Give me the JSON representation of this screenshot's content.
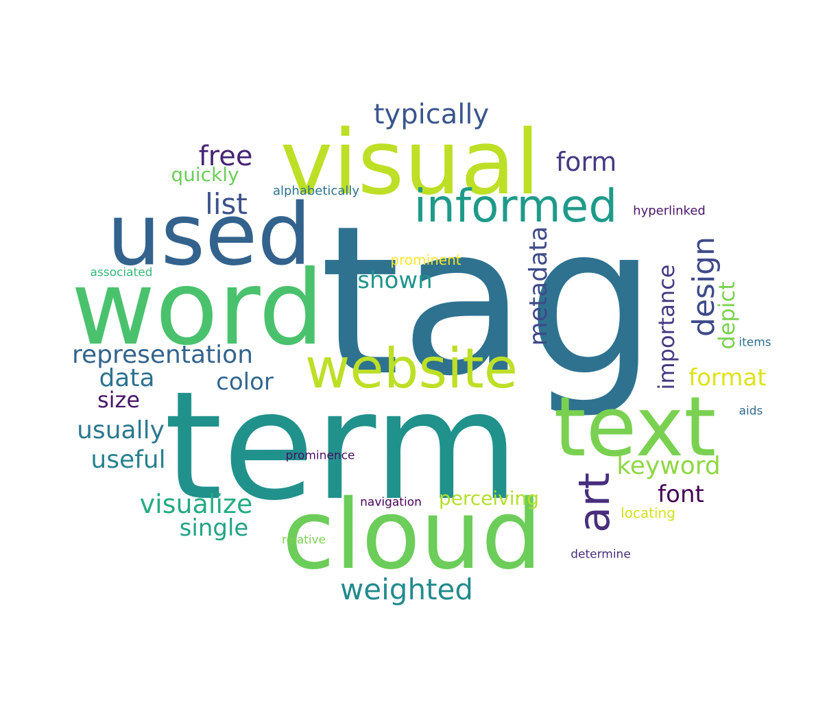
{
  "words": [
    {
      "text": "tag",
      "color": "#2e7290"
    },
    {
      "text": "term",
      "color": "#21918c"
    },
    {
      "text": "visual",
      "color": "#bddf26"
    },
    {
      "text": "word",
      "color": "#4ac26d"
    },
    {
      "text": "used",
      "color": "#33628d"
    },
    {
      "text": "cloud",
      "color": "#6ccd5a"
    },
    {
      "text": "text",
      "color": "#7ad151"
    },
    {
      "text": "website",
      "color": "#bddf26"
    },
    {
      "text": "informed",
      "color": "#1f9a8a"
    },
    {
      "text": "art",
      "color": "#472f7d"
    },
    {
      "text": "typically",
      "color": "#39568c"
    },
    {
      "text": "weighted",
      "color": "#238a8d"
    },
    {
      "text": "design",
      "color": "#3e4a89"
    },
    {
      "text": "metadata",
      "color": "#3e4a89"
    },
    {
      "text": "representation",
      "color": "#33638d"
    },
    {
      "text": "list",
      "color": "#3b518b"
    },
    {
      "text": "free",
      "color": "#482576"
    },
    {
      "text": "form",
      "color": "#443a83"
    },
    {
      "text": "importance",
      "color": "#443983"
    },
    {
      "text": "visualize",
      "color": "#25ab82"
    },
    {
      "text": "keyword",
      "color": "#8fd744"
    },
    {
      "text": "shown",
      "color": "#1f948c"
    },
    {
      "text": "data",
      "color": "#2c728e"
    },
    {
      "text": "usually",
      "color": "#2a788e"
    },
    {
      "text": "useful",
      "color": "#26818e"
    },
    {
      "text": "color",
      "color": "#31668e"
    },
    {
      "text": "format",
      "color": "#dde318"
    },
    {
      "text": "font",
      "color": "#440154"
    },
    {
      "text": "single",
      "color": "#20a386"
    },
    {
      "text": "perceiving",
      "color": "#b5de2b"
    },
    {
      "text": "depict",
      "color": "#7ad151"
    },
    {
      "text": "size",
      "color": "#481769"
    },
    {
      "text": "quickly",
      "color": "#6ccd5a"
    },
    {
      "text": "prominent",
      "color": "#fde725"
    },
    {
      "text": "locating",
      "color": "#d2e21b"
    },
    {
      "text": "alphabetically",
      "color": "#2c718e"
    },
    {
      "text": "hyperlinked",
      "color": "#481668"
    },
    {
      "text": "associated",
      "color": "#35b779"
    },
    {
      "text": "items",
      "color": "#2d708e"
    },
    {
      "text": "aids",
      "color": "#31688e"
    },
    {
      "text": "prominence",
      "color": "#471164"
    },
    {
      "text": "navigation",
      "color": "#440154"
    },
    {
      "text": "relative",
      "color": "#7ad151"
    },
    {
      "text": "determine",
      "color": "#472d7b"
    }
  ]
}
